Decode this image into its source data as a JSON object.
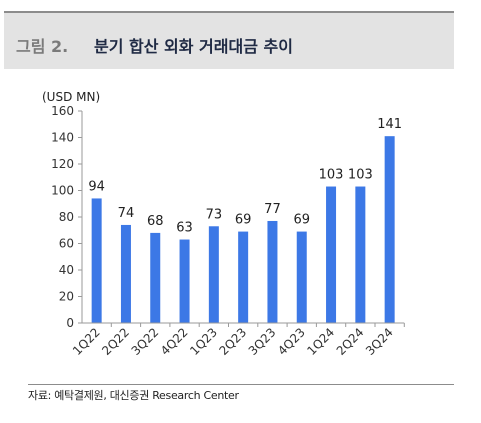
{
  "header": {
    "figure_label": "그림 2.",
    "figure_title": "분기 합산 외화 거래대금 추이"
  },
  "chart_data": {
    "type": "bar",
    "unit_label": "(USD MN)",
    "categories": [
      "1Q22",
      "2Q22",
      "3Q22",
      "4Q22",
      "1Q23",
      "2Q23",
      "3Q23",
      "4Q23",
      "1Q24",
      "2Q24",
      "3Q24"
    ],
    "values": [
      94,
      74,
      68,
      63,
      73,
      69,
      77,
      69,
      103,
      103,
      141
    ],
    "ylim": [
      0,
      160
    ],
    "yticks": [
      0,
      20,
      40,
      60,
      80,
      100,
      120,
      140,
      160
    ],
    "bar_color": "#3c78e6",
    "grid": false,
    "title": "",
    "xlabel": "",
    "ylabel": ""
  },
  "footer": {
    "source": "자료: 예탁결제원, 대신증권 Research Center"
  }
}
